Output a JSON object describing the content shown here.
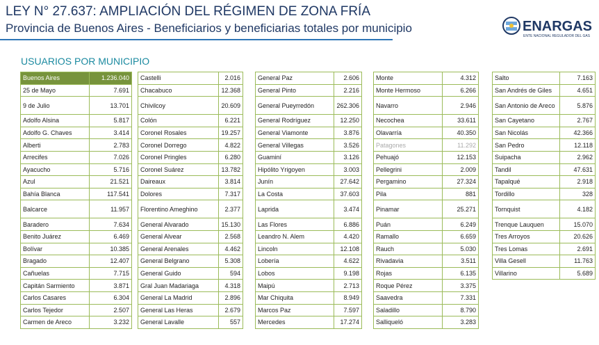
{
  "header": {
    "title": "LEY N° 27.637: AMPLIACIÓN DEL RÉGIMEN DE ZONA FRÍA",
    "subtitle": "Provincia de Buenos Aires - Beneficiarios y beneficiarias totales por municipio"
  },
  "logo": {
    "name": "ENARGAS",
    "tagline": "ENTE NACIONAL REGULADOR DEL GAS"
  },
  "section": "USUARIOS POR MUNICIPIO",
  "columns": [
    [
      [
        "Buenos Aires",
        "1.236.040"
      ],
      [
        "25 de Mayo",
        "7.691"
      ],
      [
        "9 de Julio",
        "13.701"
      ],
      [
        "Adolfo Alsina",
        "5.817"
      ],
      [
        "Adolfo G. Chaves",
        "3.414"
      ],
      [
        "Alberti",
        "2.783"
      ],
      [
        "Arrecifes",
        "7.026"
      ],
      [
        "Ayacucho",
        "5.716"
      ],
      [
        "Azul",
        "21.521"
      ],
      [
        "Bahía Blanca",
        "117.541"
      ],
      [
        "Balcarce",
        "11.957"
      ],
      [
        "Baradero",
        "7.634"
      ],
      [
        "Benito Juárez",
        "6.469"
      ],
      [
        "Bolívar",
        "10.385"
      ],
      [
        "Bragado",
        "12.407"
      ],
      [
        "Cañuelas",
        "7.715"
      ],
      [
        "Capitán Sarmiento",
        "3.871"
      ],
      [
        "Carlos Casares",
        "6.304"
      ],
      [
        "Carlos Tejedor",
        "2.507"
      ],
      [
        "Carmen de Areco",
        "3.232"
      ]
    ],
    [
      [
        "Castelli",
        "2.016"
      ],
      [
        "Chacabuco",
        "12.368"
      ],
      [
        "Chivilcoy",
        "20.609"
      ],
      [
        "Colón",
        "6.221"
      ],
      [
        "Coronel  Rosales",
        "19.257"
      ],
      [
        "Coronel Dorrego",
        "4.822"
      ],
      [
        "Coronel Pringles",
        "6.280"
      ],
      [
        "Coronel Suárez",
        "13.782"
      ],
      [
        "Daireaux",
        "3.814"
      ],
      [
        "Dolores",
        "7.317"
      ],
      [
        "Florentino Ameghino",
        "2.377"
      ],
      [
        "General Alvarado",
        "15.130"
      ],
      [
        "General Alvear",
        "2.568"
      ],
      [
        "General Arenales",
        "4.462"
      ],
      [
        "General Belgrano",
        "5.308"
      ],
      [
        "General Guido",
        "594"
      ],
      [
        "Gral Juan Madariaga",
        "4.318"
      ],
      [
        "General La Madrid",
        "2.896"
      ],
      [
        "General Las Heras",
        "2.679"
      ],
      [
        "General Lavalle",
        "557"
      ]
    ],
    [
      [
        "General Paz",
        "2.606"
      ],
      [
        "General Pinto",
        "2.216"
      ],
      [
        "General Pueyrredón",
        "262.306"
      ],
      [
        "General Rodríguez",
        "12.250"
      ],
      [
        "General Viamonte",
        "3.876"
      ],
      [
        "General Villegas",
        "3.526"
      ],
      [
        "Guaminí",
        "3.126"
      ],
      [
        "Hipólito Yrigoyen",
        "3.003"
      ],
      [
        "Junín",
        "27.642"
      ],
      [
        "La Costa",
        "37.603"
      ],
      [
        "Laprida",
        "3.474"
      ],
      [
        "Las Flores",
        "6.886"
      ],
      [
        "Leandro N. Alem",
        "4.420"
      ],
      [
        "Lincoln",
        "12.108"
      ],
      [
        "Lobería",
        "4.622"
      ],
      [
        "Lobos",
        "9.198"
      ],
      [
        "Maipú",
        "2.713"
      ],
      [
        "Mar Chiquita",
        "8.949"
      ],
      [
        "Marcos Paz",
        "7.597"
      ],
      [
        "Mercedes",
        "17.274"
      ]
    ],
    [
      [
        "Monte",
        "4.312"
      ],
      [
        "Monte Hermoso",
        "6.266"
      ],
      [
        "Navarro",
        "2.946"
      ],
      [
        "Necochea",
        "33.611"
      ],
      [
        "Olavarría",
        "40.350"
      ],
      [
        "Patagones",
        "11.292"
      ],
      [
        "Pehuajó",
        "12.153"
      ],
      [
        "Pellegrini",
        "2.009"
      ],
      [
        "Pergamino",
        "27.324"
      ],
      [
        "Pila",
        "881"
      ],
      [
        "Pinamar",
        "25.271"
      ],
      [
        "Puán",
        "6.249"
      ],
      [
        "Ramallo",
        "6.659"
      ],
      [
        "Rauch",
        "5.030"
      ],
      [
        "Rivadavia",
        "3.511"
      ],
      [
        "Rojas",
        "6.135"
      ],
      [
        "Roque Pérez",
        "3.375"
      ],
      [
        "Saavedra",
        "7.331"
      ],
      [
        "Saladillo",
        "8.790"
      ],
      [
        "Salliqueló",
        "3.283"
      ]
    ],
    [
      [
        "Salto",
        "7.163"
      ],
      [
        "San Andrés de Giles",
        "4.651"
      ],
      [
        "San Antonio de Areco",
        "5.876"
      ],
      [
        "San Cayetano",
        "2.767"
      ],
      [
        "San Nicolás",
        "42.366"
      ],
      [
        "San Pedro",
        "12.118"
      ],
      [
        "Suipacha",
        "2.962"
      ],
      [
        "Tandil",
        "47.631"
      ],
      [
        "Tapalqué",
        "2.918"
      ],
      [
        "Tordillo",
        "328"
      ],
      [
        "Tornquist",
        "4.182"
      ],
      [
        "Trenque Lauquen",
        "15.070"
      ],
      [
        "Tres Arroyos",
        "20.626"
      ],
      [
        "Tres Lomas",
        "2.691"
      ],
      [
        "Villa Gesell",
        "11.763"
      ],
      [
        "Villarino",
        "5.689"
      ]
    ]
  ]
}
